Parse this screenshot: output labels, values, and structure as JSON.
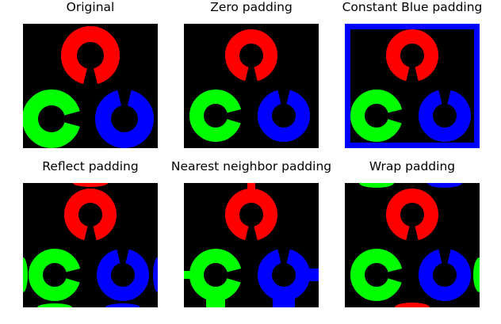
{
  "colors": {
    "red": "#ff0000",
    "green": "#00ff00",
    "blue": "#0000ff",
    "background": "#000000"
  },
  "panels": [
    {
      "title": "Original",
      "padding_type": "none"
    },
    {
      "title": "Zero padding",
      "padding_type": "zero"
    },
    {
      "title": "Constant Blue padding",
      "padding_type": "constant-blue"
    },
    {
      "title": "Reflect padding",
      "padding_type": "reflect"
    },
    {
      "title": "Nearest neighbor padding",
      "padding_type": "edge"
    },
    {
      "title": "Wrap padding",
      "padding_type": "wrap"
    }
  ]
}
